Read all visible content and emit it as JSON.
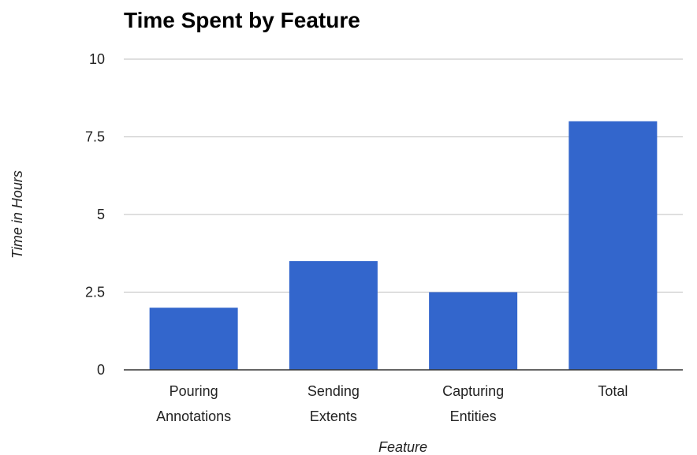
{
  "chart_data": {
    "type": "bar",
    "title": "Time Spent by Feature",
    "xlabel": "Feature",
    "ylabel": "Time in Hours",
    "categories": [
      [
        "Pouring",
        "Annotations"
      ],
      [
        "Sending",
        "Extents"
      ],
      [
        "Capturing",
        "Entities"
      ],
      [
        "Total"
      ]
    ],
    "values": [
      2,
      3.5,
      2.5,
      8
    ],
    "ylim": [
      0,
      10
    ],
    "yticks": [
      0,
      2.5,
      5,
      7.5,
      10
    ],
    "ytick_labels": [
      "0",
      "2.5",
      "5",
      "7.5",
      "10"
    ],
    "grid": true,
    "bar_color": "#3366cc"
  }
}
